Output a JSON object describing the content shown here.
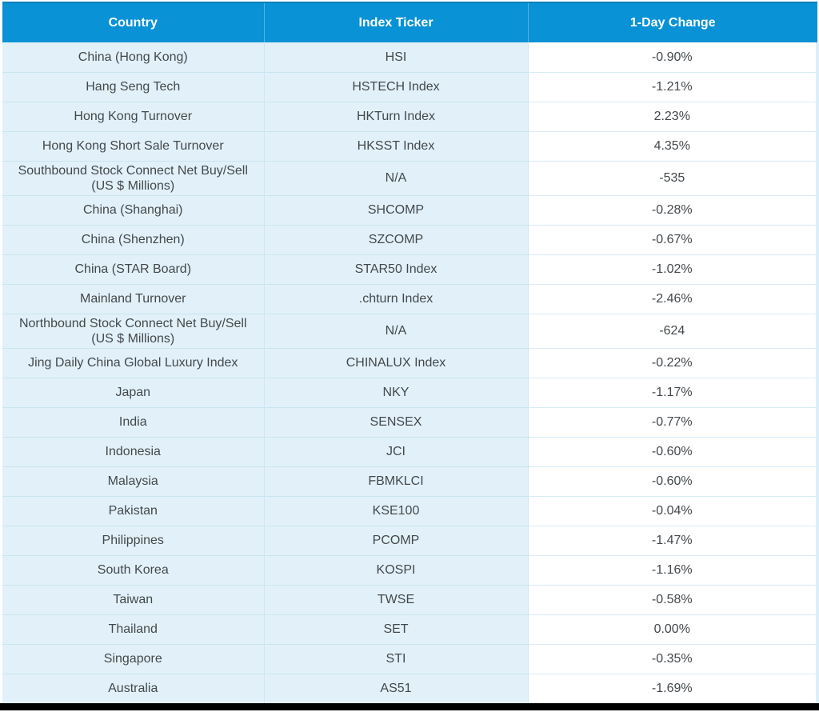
{
  "colors": {
    "header_bg": "#0992d5",
    "header_text": "#ffffff",
    "row_bg": "#e2f1f9",
    "change_column_bg": "#ffffff",
    "grid_line": "#c9e5f2",
    "body_text": "#43484c",
    "bottom_bar": "#000000"
  },
  "chart_data": {
    "type": "table",
    "columns": [
      "Country",
      "Index Ticker",
      "1-Day Change"
    ],
    "rows": [
      [
        "China (Hong Kong)",
        "HSI",
        "-0.90%"
      ],
      [
        "Hang Seng Tech",
        "HSTECH Index",
        "-1.21%"
      ],
      [
        "Hong Kong Turnover",
        "HKTurn Index",
        "2.23%"
      ],
      [
        "Hong Kong Short Sale Turnover",
        "HKSST Index",
        "4.35%"
      ],
      [
        "Southbound Stock Connect Net Buy/Sell (US $ Millions)",
        "N/A",
        "-535"
      ],
      [
        "China (Shanghai)",
        "SHCOMP",
        "-0.28%"
      ],
      [
        "China (Shenzhen)",
        "SZCOMP",
        "-0.67%"
      ],
      [
        "China (STAR Board)",
        "STAR50 Index",
        "-1.02%"
      ],
      [
        "Mainland Turnover",
        ".chturn Index",
        "-2.46%"
      ],
      [
        "Northbound Stock Connect Net Buy/Sell (US $ Millions)",
        "N/A",
        "-624"
      ],
      [
        "Jing Daily China Global Luxury Index",
        "CHINALUX Index",
        "-0.22%"
      ],
      [
        "Japan",
        "NKY",
        "-1.17%"
      ],
      [
        "India",
        "SENSEX",
        "-0.77%"
      ],
      [
        "Indonesia",
        "JCI",
        "-0.60%"
      ],
      [
        "Malaysia",
        "FBMKLCI",
        "-0.60%"
      ],
      [
        "Pakistan",
        "KSE100",
        "-0.04%"
      ],
      [
        "Philippines",
        "PCOMP",
        "-1.47%"
      ],
      [
        "South Korea",
        "KOSPI",
        "-1.16%"
      ],
      [
        "Taiwan",
        "TWSE",
        "-0.58%"
      ],
      [
        "Thailand",
        "SET",
        "0.00%"
      ],
      [
        "Singapore",
        "STI",
        "-0.35%"
      ],
      [
        "Australia",
        "AS51",
        "-1.69%"
      ]
    ]
  }
}
